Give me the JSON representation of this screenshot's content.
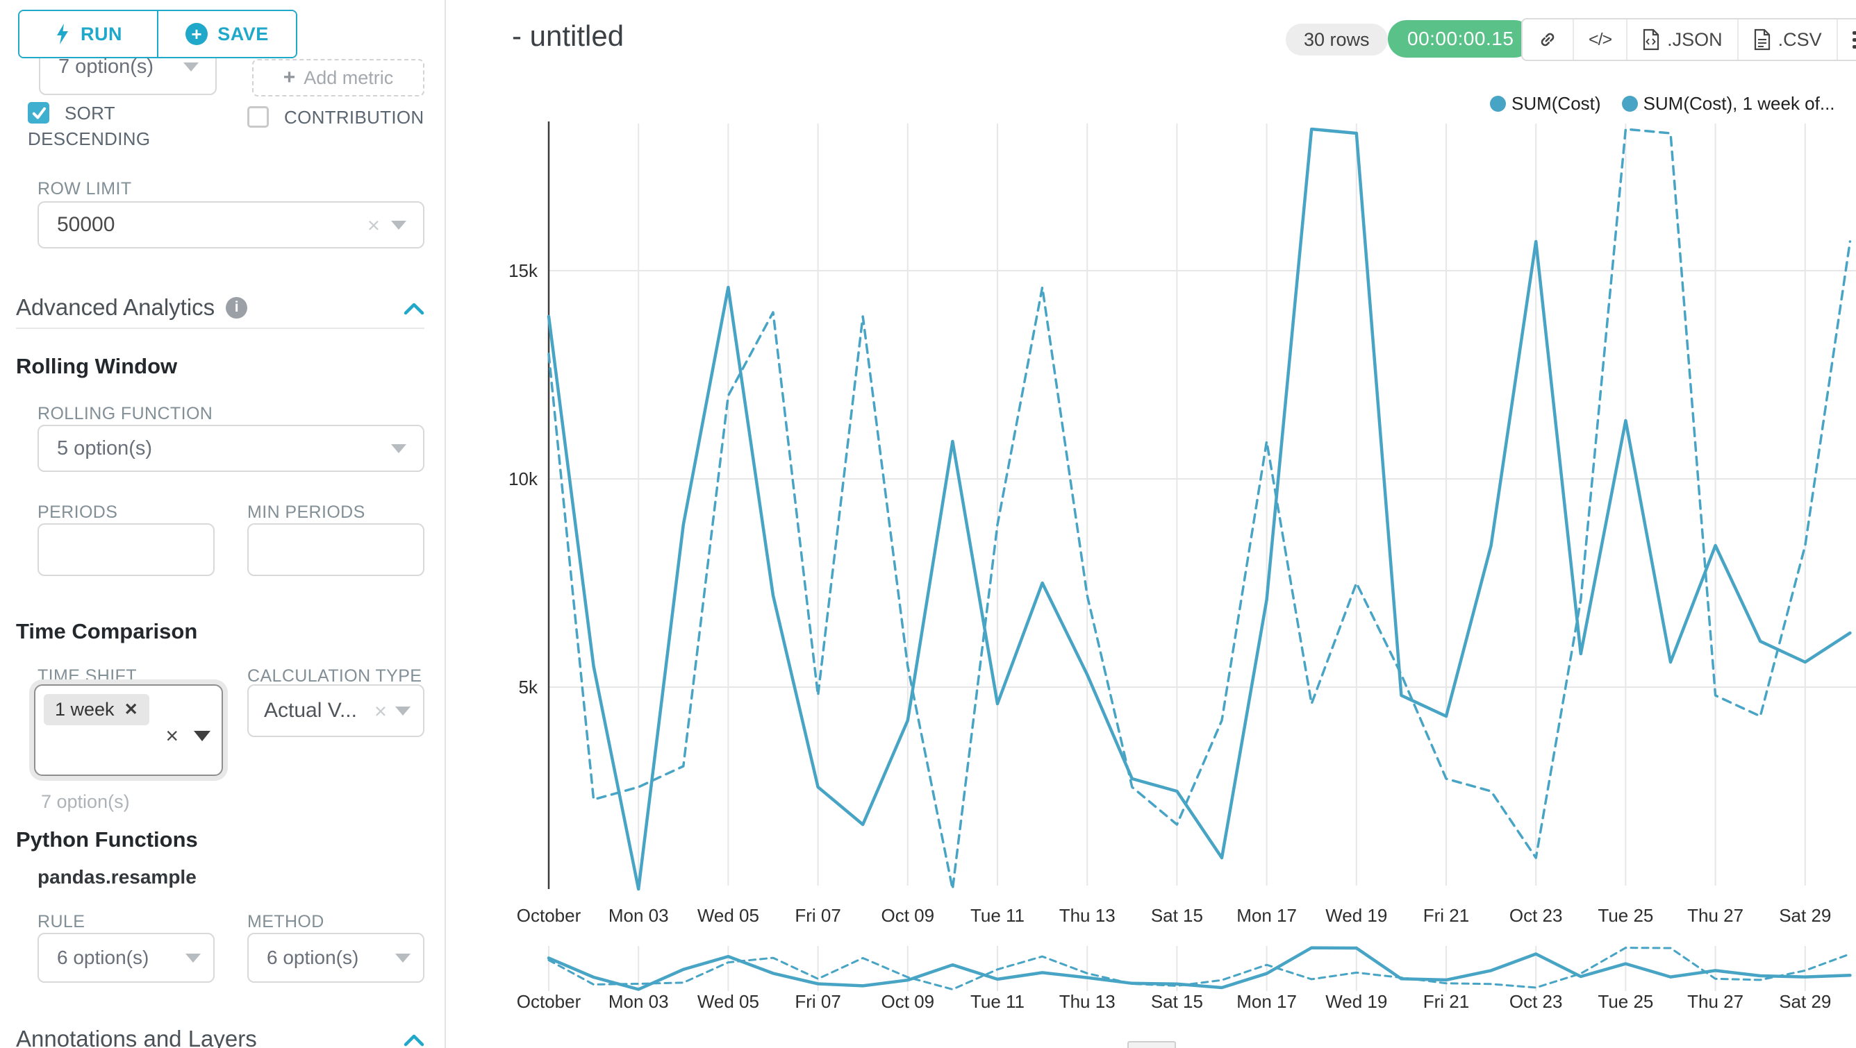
{
  "sidebar": {
    "run_button": "RUN",
    "save_button": "SAVE",
    "series_select_value": "7 option(s)",
    "add_metric_label": "Add metric",
    "sort_descending_label": "SORT DESCENDING",
    "sort_descending_checked": true,
    "contribution_label": "CONTRIBUTION",
    "contribution_checked": false,
    "row_limit_label": "ROW LIMIT",
    "row_limit_value": "50000",
    "advanced_analytics_title": "Advanced Analytics",
    "rolling_window_title": "Rolling Window",
    "rolling_function_label": "ROLLING FUNCTION",
    "rolling_function_value": "5 option(s)",
    "periods_label": "PERIODS",
    "min_periods_label": "MIN PERIODS",
    "time_comparison_title": "Time Comparison",
    "time_shift_label": "TIME SHIFT",
    "time_shift_tag": "1 week",
    "time_shift_helper": "7 option(s)",
    "calculation_type_label": "CALCULATION TYPE",
    "calculation_type_value": "Actual V...",
    "python_functions_title": "Python Functions",
    "python_function_name": "pandas.resample",
    "rule_label": "RULE",
    "rule_value": "6 option(s)",
    "method_label": "METHOD",
    "method_value": "6 option(s)",
    "annotations_title": "Annotations and Layers"
  },
  "header": {
    "title": "- untitled",
    "rows_badge": "30 rows",
    "timer_badge": "00:00:00.15",
    "code_button": "</>",
    "export_json": ".JSON",
    "export_csv": ".CSV",
    "timer_color": "#5AC189"
  },
  "chart_data": {
    "type": "line",
    "title": "",
    "xlabel": "",
    "ylabel": "",
    "x_axis_note": "daily values for October (Oct 1 - Oct 30), ticks every 2 days",
    "x_tick_labels": [
      "October",
      "Mon 03",
      "Wed 05",
      "Fri 07",
      "Oct 09",
      "Tue 11",
      "Thu 13",
      "Sat 15",
      "Mon 17",
      "Wed 19",
      "Fri 21",
      "Oct 23",
      "Tue 25",
      "Thu 27",
      "Sat 29"
    ],
    "y_tick_values": [
      5000,
      10000,
      15000
    ],
    "y_tick_labels": [
      "5k",
      "10k",
      "15k"
    ],
    "ylim": [
      0,
      18600
    ],
    "grid": true,
    "legend_position": "top-right",
    "color": "#48A4C5",
    "legend": [
      "SUM(Cost)",
      "SUM(Cost), 1 week of..."
    ],
    "series": [
      {
        "name": "SUM(Cost)",
        "line_style": "solid",
        "values": [
          13900,
          5500,
          150,
          8900,
          14600,
          7200,
          2600,
          1700,
          4200,
          10900,
          4600,
          7500,
          5300,
          2800,
          2500,
          900,
          7100,
          18400,
          18300,
          4800,
          4300,
          8400,
          15700,
          5800,
          11400,
          5600,
          8400,
          6100,
          5600,
          6300
        ]
      },
      {
        "name": "SUM(Cost), 1 week of...",
        "line_style": "dashed",
        "values": [
          13000,
          2300,
          2600,
          3100,
          12000,
          14000,
          4800,
          13900,
          5500,
          150,
          8900,
          14600,
          7200,
          2600,
          1700,
          4200,
          10900,
          4600,
          7500,
          5300,
          2800,
          2500,
          900,
          7100,
          18400,
          18300,
          4800,
          4300,
          8400,
          15700
        ]
      }
    ],
    "mini_chart": true
  }
}
